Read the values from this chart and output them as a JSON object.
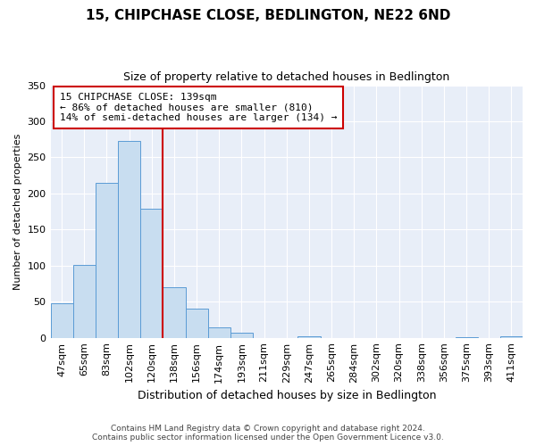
{
  "title": "15, CHIPCHASE CLOSE, BEDLINGTON, NE22 6ND",
  "subtitle": "Size of property relative to detached houses in Bedlington",
  "xlabel": "Distribution of detached houses by size in Bedlington",
  "ylabel": "Number of detached properties",
  "bar_labels": [
    "47sqm",
    "65sqm",
    "83sqm",
    "102sqm",
    "120sqm",
    "138sqm",
    "156sqm",
    "174sqm",
    "193sqm",
    "211sqm",
    "229sqm",
    "247sqm",
    "265sqm",
    "284sqm",
    "302sqm",
    "320sqm",
    "338sqm",
    "356sqm",
    "375sqm",
    "393sqm",
    "411sqm"
  ],
  "bar_heights": [
    48,
    101,
    215,
    273,
    179,
    70,
    40,
    14,
    7,
    0,
    0,
    2,
    0,
    0,
    0,
    0,
    0,
    0,
    1,
    0,
    2
  ],
  "bar_color": "#c8ddf0",
  "bar_edge_color": "#5b9bd5",
  "ylim": [
    0,
    350
  ],
  "yticks": [
    0,
    50,
    100,
    150,
    200,
    250,
    300,
    350
  ],
  "property_line_color": "#cc0000",
  "property_line_bin_index": 5,
  "annotation_title": "15 CHIPCHASE CLOSE: 139sqm",
  "annotation_line1": "← 86% of detached houses are smaller (810)",
  "annotation_line2": "14% of semi-detached houses are larger (134) →",
  "annotation_box_color": "#cc0000",
  "footer_line1": "Contains HM Land Registry data © Crown copyright and database right 2024.",
  "footer_line2": "Contains public sector information licensed under the Open Government Licence v3.0.",
  "background_color": "#e8eef8",
  "grid_color": "#ffffff",
  "title_fontsize": 11,
  "subtitle_fontsize": 9,
  "ylabel_fontsize": 8,
  "xlabel_fontsize": 9,
  "tick_fontsize": 8,
  "annotation_fontsize": 8,
  "footer_fontsize": 6.5
}
